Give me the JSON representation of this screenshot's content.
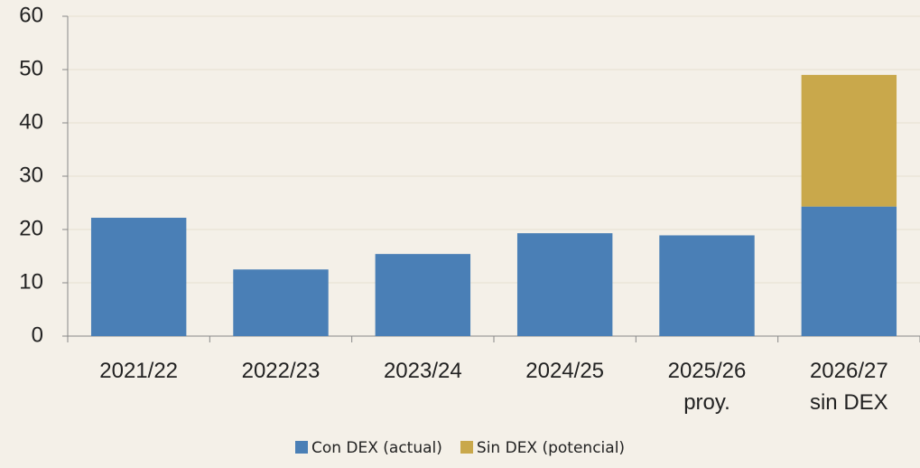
{
  "chart_data": {
    "type": "stacked-bar",
    "categories": [
      "2021/22",
      "2022/23",
      "2023/24",
      "2024/25",
      "2025/26\nproy.",
      "2026/27\nsin DEX"
    ],
    "series": [
      {
        "name": "Con DEX (actual)",
        "color": "#4a7fb6",
        "values": [
          22.2,
          12.5,
          15.4,
          19.3,
          18.9,
          24.3
        ]
      },
      {
        "name": "Sin DEX (potencial)",
        "color": "#c9a84b",
        "values": [
          null,
          null,
          null,
          null,
          null,
          24.7
        ]
      }
    ],
    "ylim": [
      0,
      60
    ],
    "yticks": [
      0,
      10,
      20,
      30,
      40,
      50,
      60
    ],
    "grid": true
  }
}
